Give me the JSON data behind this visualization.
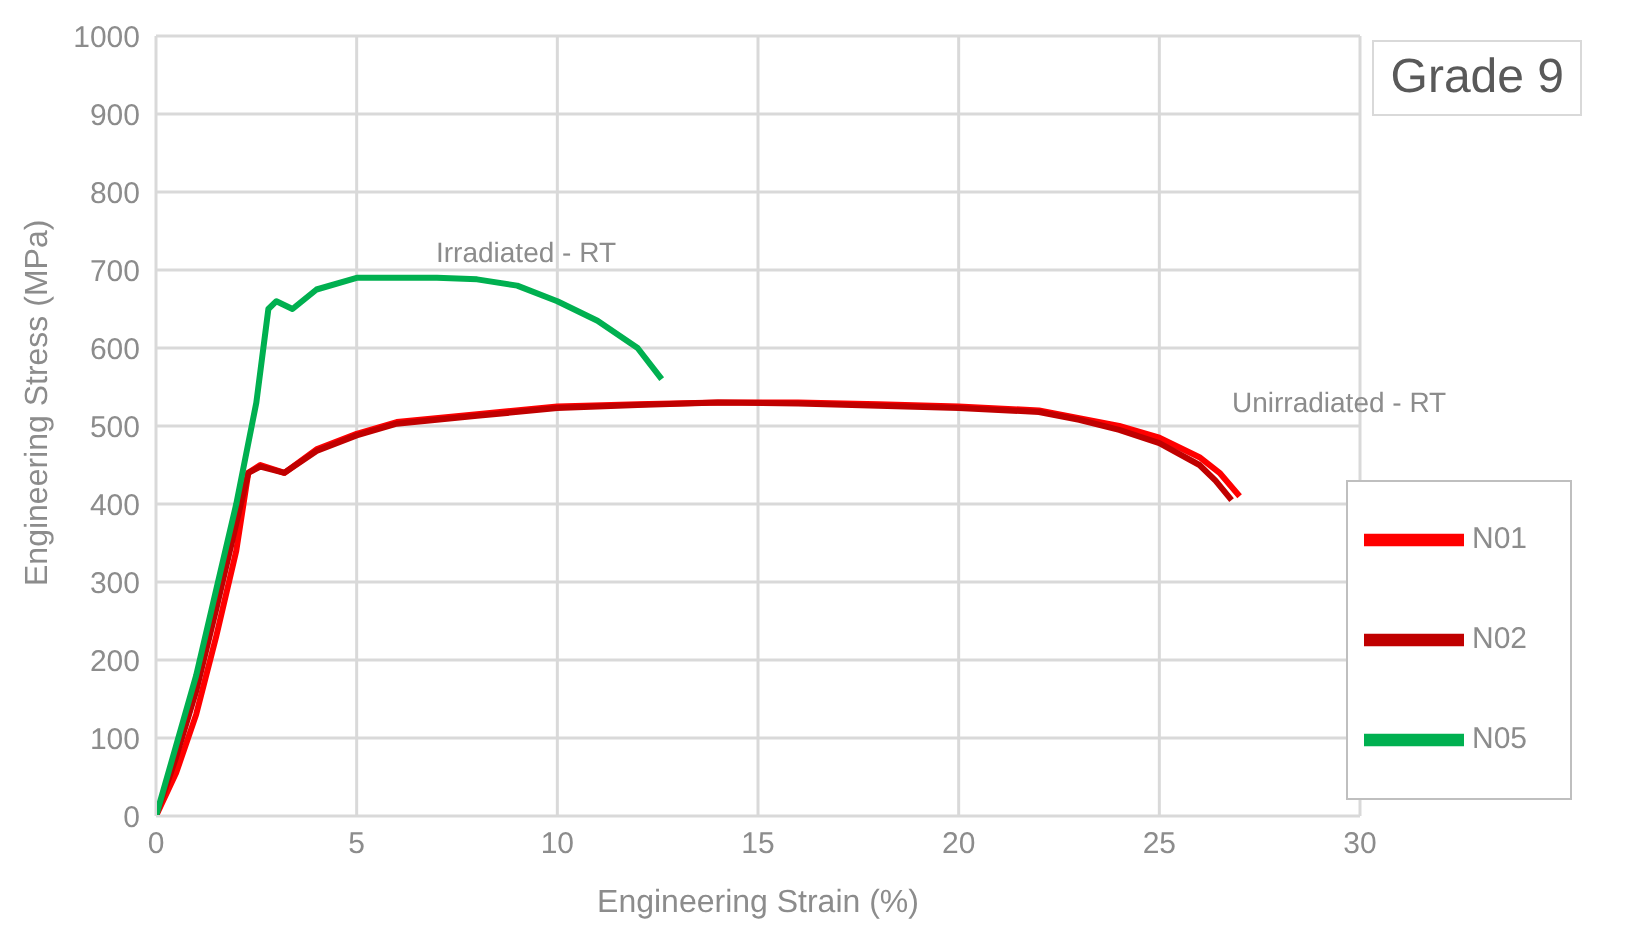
{
  "chart_data": {
    "type": "line",
    "title": "Grade 9",
    "xlabel": "Engineering Strain (%)",
    "ylabel": "Engineering Stress (MPa)",
    "series": [
      {
        "name": "N01",
        "color": "#ff0000",
        "x": [
          0,
          0.5,
          1,
          1.5,
          2,
          2.3,
          2.6,
          3.2,
          4,
          5,
          6,
          8,
          10,
          12,
          14,
          16,
          18,
          20,
          22,
          23,
          24,
          25,
          26,
          26.5,
          27
        ],
        "values": [
          0,
          55,
          130,
          230,
          340,
          440,
          450,
          440,
          470,
          490,
          505,
          515,
          525,
          528,
          530,
          530,
          528,
          525,
          520,
          510,
          500,
          485,
          460,
          440,
          410
        ]
      },
      {
        "name": "N02",
        "color": "#c00000",
        "x": [
          0,
          0.5,
          1,
          1.5,
          2,
          2.3,
          2.6,
          3.2,
          4,
          5,
          6,
          8,
          10,
          12,
          14,
          16,
          18,
          20,
          22,
          23,
          24,
          25,
          26,
          26.4,
          26.8
        ],
        "values": [
          0,
          75,
          160,
          265,
          375,
          440,
          448,
          440,
          468,
          488,
          503,
          513,
          523,
          527,
          530,
          529,
          526,
          523,
          518,
          508,
          495,
          478,
          450,
          430,
          405
        ]
      },
      {
        "name": "N05",
        "color": "#00b050",
        "x": [
          0,
          0.5,
          1,
          1.5,
          2,
          2.5,
          2.8,
          3,
          3.4,
          4,
          5,
          6,
          7,
          8,
          9,
          10,
          11,
          12,
          12.6
        ],
        "values": [
          0,
          90,
          180,
          290,
          400,
          530,
          650,
          660,
          650,
          675,
          690,
          690,
          690,
          688,
          680,
          660,
          635,
          600,
          560
        ]
      }
    ],
    "annotations": [
      "Irradiated - RT",
      "Unirradiated - RT"
    ],
    "xlim": [
      0,
      30
    ],
    "xticks": [
      0,
      5,
      10,
      15,
      20,
      25,
      30
    ],
    "ylim": [
      0,
      1000
    ],
    "yticks": [
      0,
      100,
      200,
      300,
      400,
      500,
      600,
      700,
      800,
      900,
      1000
    ],
    "grid": true,
    "legend": "bottom right",
    "marker": "none",
    "line_style": "solid"
  }
}
